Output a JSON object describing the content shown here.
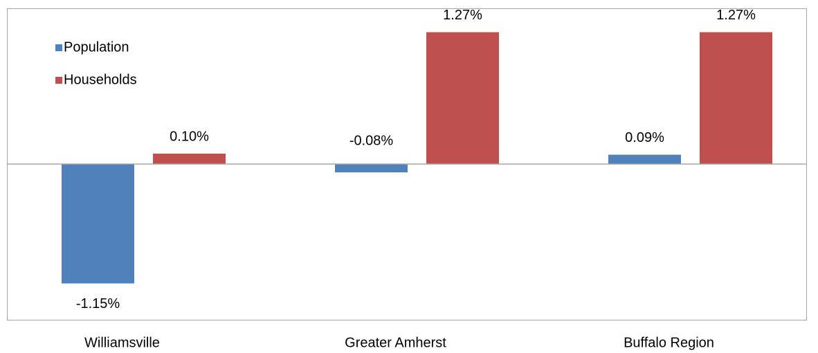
{
  "chart_data": {
    "type": "bar",
    "categories": [
      "Williamsville",
      "Greater Amherst",
      "Buffalo Region"
    ],
    "series": [
      {
        "name": "Population",
        "color": "#4f81bd",
        "values": [
          -1.15,
          -0.08,
          0.09
        ],
        "value_labels": [
          "-1.15%",
          "-0.08%",
          "0.09%"
        ]
      },
      {
        "name": "Households",
        "color": "#c0504d",
        "values": [
          0.1,
          1.27,
          1.27
        ],
        "value_labels": [
          "0.10%",
          "1.27%",
          "1.27%"
        ]
      }
    ],
    "ylim": [
      -1.5,
      1.5
    ],
    "legend": "top-left"
  }
}
